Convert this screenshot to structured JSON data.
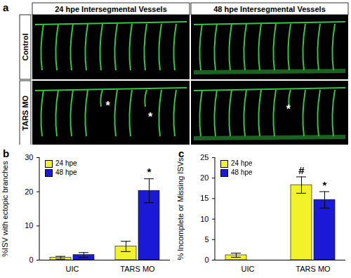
{
  "image_panel": {
    "label": "a",
    "columns": [
      "24 hpe Intersegmental Vessels",
      "48 hpe Intersegmental Vessels"
    ],
    "rows": [
      "Control",
      "TARS MO"
    ],
    "images": [
      {
        "row": "Control",
        "column": "24 hpe Intersegmental Vessels",
        "annotations": []
      },
      {
        "row": "Control",
        "column": "48 hpe Intersegmental Vessels",
        "annotations": []
      },
      {
        "row": "TARS MO",
        "column": "24 hpe Intersegmental Vessels",
        "annotations": [
          "*",
          "*"
        ]
      },
      {
        "row": "TARS MO",
        "column": "48 hpe Intersegmental Vessels",
        "annotations": [
          "*"
        ]
      }
    ]
  },
  "chart_data": [
    {
      "type": "bar",
      "label": "b",
      "y_label": "%ISV with ectopic branches",
      "categories": [
        "UIC",
        "TARS MO"
      ],
      "series": [
        {
          "name": "24 hpe",
          "color": "#f2f22a",
          "values": [
            0.7,
            4.0
          ],
          "errors": [
            0.4,
            1.5
          ]
        },
        {
          "name": "48 hpe",
          "color": "#1a1ad6",
          "values": [
            1.5,
            20.3
          ],
          "errors": [
            0.7,
            3.5
          ]
        }
      ],
      "ylim": [
        0,
        30
      ],
      "yticks": [
        0,
        10,
        20,
        30
      ],
      "legend": "upper left",
      "annotations": [
        {
          "category": "TARS MO",
          "series": "48 hpe",
          "text": "*"
        }
      ]
    },
    {
      "type": "bar",
      "label": "c",
      "y_label": "% Incomplete or Missing ISVs",
      "categories": [
        "UIC",
        "TARS MO"
      ],
      "series": [
        {
          "name": "24 hpe",
          "color": "#f2f22a",
          "values": [
            1.2,
            18.3
          ],
          "errors": [
            0.5,
            2.0
          ]
        },
        {
          "name": "48 hpe",
          "color": "#1a1ad6",
          "values": [
            0,
            14.7
          ],
          "errors": [
            0,
            2.0
          ]
        }
      ],
      "ylim": [
        0,
        25
      ],
      "yticks": [
        0,
        5,
        10,
        15,
        20,
        25
      ],
      "legend": "upper left",
      "annotations": [
        {
          "category": "TARS MO",
          "series": "24 hpe",
          "text": "#"
        },
        {
          "category": "TARS MO",
          "series": "48 hpe",
          "text": "*"
        }
      ]
    }
  ]
}
